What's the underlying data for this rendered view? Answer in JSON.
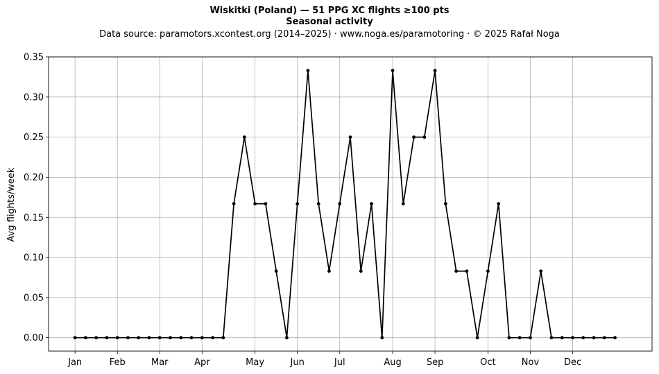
{
  "header": {
    "title": "Wiskitki (Poland)  —  51 PPG XC flights ≥100 pts",
    "subtitle": "Seasonal activity",
    "source": "Data source: paramotors.xcontest.org (2014–2025)  ·  www.noga.es/paramotoring  ·  © 2025 Rafał Noga"
  },
  "chart_data": {
    "type": "line",
    "title": "Wiskitki (Poland)  —  51 PPG XC flights ≥100 pts",
    "subtitle": "Seasonal activity",
    "xlabel": "",
    "ylabel": "Avg flights/week",
    "x_tick_labels": [
      "Jan",
      "Feb",
      "Mar",
      "Apr",
      "May",
      "Jun",
      "Jul",
      "Aug",
      "Sep",
      "Oct",
      "Nov",
      "Dec"
    ],
    "x_tick_weeks": [
      1,
      5,
      9,
      13,
      18,
      22,
      26,
      31,
      35,
      40,
      44,
      48
    ],
    "xlim": [
      -1.5,
      55.5
    ],
    "y_ticks": [
      0.0,
      0.05,
      0.1,
      0.15,
      0.2,
      0.25,
      0.3,
      0.35
    ],
    "y_tick_labels": [
      "0.00",
      "0.05",
      "0.10",
      "0.15",
      "0.20",
      "0.25",
      "0.30",
      "0.35"
    ],
    "ylim": [
      -0.0167,
      0.35
    ],
    "grid": true,
    "color": "#000000",
    "series": [
      {
        "x": [
          1,
          2,
          3,
          4,
          5,
          6,
          7,
          8,
          9,
          10,
          11,
          12,
          13,
          14,
          15,
          16,
          17,
          18,
          19,
          20,
          21,
          22,
          23,
          24,
          25,
          26,
          27,
          28,
          29,
          30,
          31,
          32,
          33,
          34,
          35,
          36,
          37,
          38,
          39,
          40,
          41,
          42,
          43,
          44,
          45,
          46,
          47,
          48,
          49,
          50,
          51,
          52
        ],
        "values": [
          0,
          0,
          0,
          0,
          0,
          0,
          0,
          0,
          0,
          0,
          0,
          0,
          0,
          0,
          0,
          0.167,
          0.25,
          0.167,
          0.167,
          0.083,
          0,
          0.167,
          0.333,
          0.167,
          0.083,
          0.167,
          0.25,
          0.083,
          0.167,
          0,
          0.333,
          0.167,
          0.25,
          0.25,
          0.333,
          0.167,
          0.083,
          0.083,
          0,
          0.083,
          0.167,
          0,
          0,
          0,
          0.083,
          0,
          0,
          0,
          0,
          0,
          0,
          0
        ]
      }
    ]
  }
}
